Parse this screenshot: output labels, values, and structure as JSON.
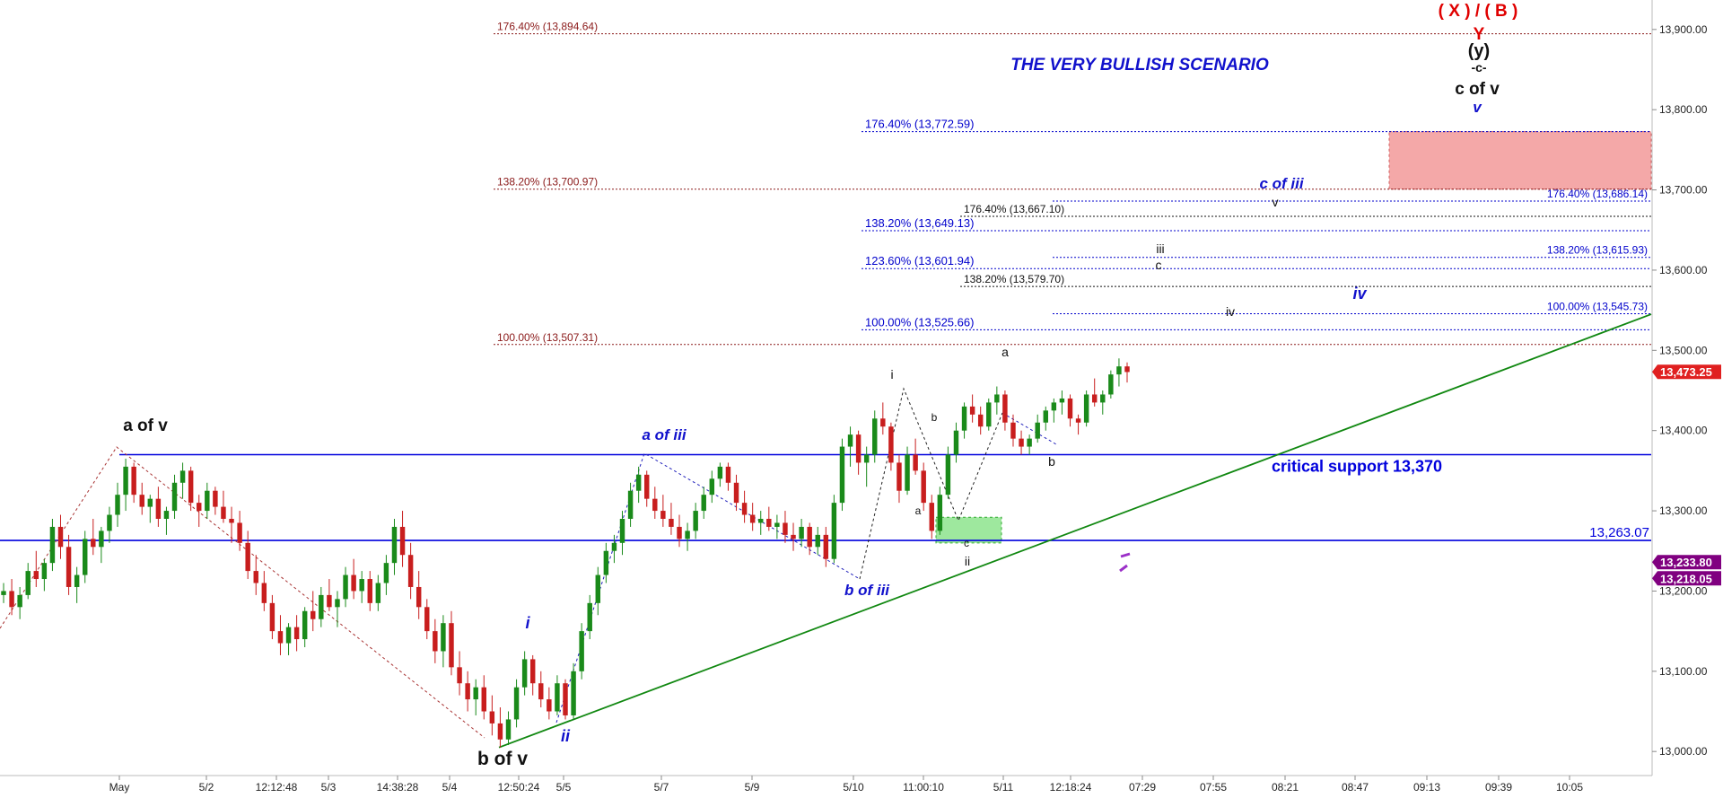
{
  "chart_data": {
    "type": "candlestick",
    "title": "THE VERY BULLISH SCENARIO",
    "ylim": [
      12970,
      13930
    ],
    "y_ticks": [
      {
        "value": 13000,
        "label": "13,000.00"
      },
      {
        "value": 13100,
        "label": "13,100.00"
      },
      {
        "value": 13200,
        "label": "13,200.00"
      },
      {
        "value": 13300,
        "label": "13,300.00"
      },
      {
        "value": 13400,
        "label": "13,400.00"
      },
      {
        "value": 13500,
        "label": "13,500.00"
      },
      {
        "value": 13600,
        "label": "13,600.00"
      },
      {
        "value": 13700,
        "label": "13,700.00"
      },
      {
        "value": 13800,
        "label": "13,800.00"
      },
      {
        "value": 13900,
        "label": "13,900.00"
      }
    ],
    "x_ticks": [
      "May",
      "5/2",
      "12:12:48",
      "5/3",
      "14:38:28",
      "5/4",
      "12:50:24",
      "5/5",
      "5/7",
      "5/9",
      "5/10",
      "11:00:10",
      "5/11",
      "12:18:24",
      "07:29",
      "07:55",
      "08:21",
      "08:47",
      "09:13",
      "09:39",
      "10:05"
    ],
    "price_badges": [
      {
        "value": 13473.25,
        "label": "13,473.25",
        "color": "#e02020"
      },
      {
        "value": 13233.8,
        "label": "13,233.80",
        "color": "#800080"
      },
      {
        "value": 13218.05,
        "label": "13,218.05",
        "color": "#800080"
      }
    ],
    "horizontal_lines": [
      {
        "value": 13370,
        "label": "critical support 13,370",
        "color": "#0000dd"
      },
      {
        "value": 13263.07,
        "label": "13,263.07",
        "color": "#0000dd"
      }
    ],
    "fib_levels": [
      {
        "label": "176.40% (13,894.64)",
        "value": 13894.64,
        "color": "#8b1a1a"
      },
      {
        "label": "138.20% (13,700.97)",
        "value": 13700.97,
        "color": "#8b1a1a"
      },
      {
        "label": "100.00% (13,507.31)",
        "value": 13507.31,
        "color": "#8b1a1a"
      },
      {
        "label": "176.40% (13,772.59)",
        "value": 13772.59,
        "color": "#0000cc"
      },
      {
        "label": "138.20% (13,649.13)",
        "value": 13649.13,
        "color": "#0000cc"
      },
      {
        "label": "123.60% (13,601.94)",
        "value": 13601.94,
        "color": "#0000cc"
      },
      {
        "label": "100.00% (13,525.66)",
        "value": 13525.66,
        "color": "#0000cc"
      },
      {
        "label": "176.40% (13,667.10)",
        "value": 13667.1,
        "color": "#111111"
      },
      {
        "label": "138.20% (13,579.70)",
        "value": 13579.7,
        "color": "#111111"
      },
      {
        "label": "176.40% (13,686.14)",
        "value": 13686.14,
        "color": "#0000cc"
      },
      {
        "label": "138.20% (13,615.93)",
        "value": 13615.93,
        "color": "#0000cc"
      },
      {
        "label": "100.00% (13,545.73)",
        "value": 13545.73,
        "color": "#0000cc"
      }
    ],
    "trendline": {
      "from_price": 13005,
      "to_price": 13545,
      "color": "#118811"
    },
    "target_zone": {
      "low": 13700.97,
      "high": 13772.59,
      "color": "#f4a8a8"
    },
    "support_zone": {
      "low": 13260,
      "high": 13292,
      "color": "#9ee89e"
    },
    "wave_labels": [
      "( X ) / ( B )",
      "Y",
      "(y)",
      "-c-",
      "c of v",
      "v",
      "a of v",
      "b of v",
      "a of iii",
      "b of iii",
      "c of iii",
      "i",
      "ii",
      "iv",
      "i",
      "ii",
      "a",
      "b",
      "c",
      "a",
      "b",
      "c",
      "iii",
      "iv",
      "v"
    ],
    "ohlc": [
      [
        13195,
        13210,
        13185,
        13200
      ],
      [
        13200,
        13215,
        13170,
        13180
      ],
      [
        13180,
        13205,
        13165,
        13195
      ],
      [
        13195,
        13235,
        13190,
        13225
      ],
      [
        13225,
        13250,
        13205,
        13215
      ],
      [
        13215,
        13240,
        13200,
        13235
      ],
      [
        13235,
        13290,
        13225,
        13280
      ],
      [
        13280,
        13295,
        13240,
        13255
      ],
      [
        13255,
        13270,
        13195,
        13205
      ],
      [
        13205,
        13230,
        13185,
        13220
      ],
      [
        13220,
        13275,
        13210,
        13265
      ],
      [
        13265,
        13290,
        13245,
        13255
      ],
      [
        13255,
        13280,
        13235,
        13275
      ],
      [
        13275,
        13305,
        13260,
        13295
      ],
      [
        13295,
        13335,
        13280,
        13320
      ],
      [
        13320,
        13365,
        13300,
        13355
      ],
      [
        13355,
        13360,
        13310,
        13320
      ],
      [
        13320,
        13335,
        13295,
        13305
      ],
      [
        13305,
        13320,
        13285,
        13315
      ],
      [
        13315,
        13330,
        13280,
        13290
      ],
      [
        13290,
        13305,
        13270,
        13300
      ],
      [
        13300,
        13345,
        13290,
        13335
      ],
      [
        13335,
        13360,
        13315,
        13350
      ],
      [
        13350,
        13355,
        13300,
        13310
      ],
      [
        13310,
        13320,
        13280,
        13300
      ],
      [
        13300,
        13335,
        13290,
        13325
      ],
      [
        13325,
        13330,
        13295,
        13305
      ],
      [
        13305,
        13325,
        13285,
        13290
      ],
      [
        13290,
        13305,
        13260,
        13285
      ],
      [
        13285,
        13300,
        13250,
        13260
      ],
      [
        13260,
        13275,
        13215,
        13225
      ],
      [
        13225,
        13245,
        13195,
        13210
      ],
      [
        13210,
        13225,
        13175,
        13185
      ],
      [
        13185,
        13195,
        13140,
        13150
      ],
      [
        13150,
        13170,
        13120,
        13135
      ],
      [
        13135,
        13160,
        13120,
        13155
      ],
      [
        13155,
        13170,
        13125,
        13140
      ],
      [
        13140,
        13180,
        13130,
        13175
      ],
      [
        13175,
        13200,
        13150,
        13165
      ],
      [
        13165,
        13205,
        13155,
        13195
      ],
      [
        13195,
        13215,
        13175,
        13180
      ],
      [
        13180,
        13200,
        13155,
        13190
      ],
      [
        13190,
        13230,
        13180,
        13220
      ],
      [
        13220,
        13240,
        13190,
        13200
      ],
      [
        13200,
        13225,
        13185,
        13215
      ],
      [
        13215,
        13225,
        13175,
        13185
      ],
      [
        13185,
        13220,
        13175,
        13210
      ],
      [
        13210,
        13245,
        13195,
        13235
      ],
      [
        13235,
        13290,
        13220,
        13280
      ],
      [
        13280,
        13300,
        13230,
        13245
      ],
      [
        13245,
        13260,
        13190,
        13205
      ],
      [
        13205,
        13225,
        13165,
        13180
      ],
      [
        13180,
        13190,
        13140,
        13150
      ],
      [
        13150,
        13165,
        13110,
        13125
      ],
      [
        13125,
        13170,
        13105,
        13160
      ],
      [
        13160,
        13175,
        13095,
        13105
      ],
      [
        13105,
        13125,
        13070,
        13085
      ],
      [
        13085,
        13100,
        13050,
        13065
      ],
      [
        13065,
        13090,
        13045,
        13080
      ],
      [
        13080,
        13095,
        13040,
        13050
      ],
      [
        13050,
        13070,
        13020,
        13035
      ],
      [
        13035,
        13055,
        13005,
        13015
      ],
      [
        13015,
        13050,
        13008,
        13040
      ],
      [
        13040,
        13090,
        13030,
        13080
      ],
      [
        13080,
        13125,
        13070,
        13115
      ],
      [
        13115,
        13120,
        13070,
        13085
      ],
      [
        13085,
        13100,
        13055,
        13065
      ],
      [
        13065,
        13080,
        13040,
        13050
      ],
      [
        13050,
        13095,
        13045,
        13085
      ],
      [
        13085,
        13090,
        13040,
        13045
      ],
      [
        13045,
        13110,
        13040,
        13100
      ],
      [
        13100,
        13160,
        13090,
        13150
      ],
      [
        13150,
        13195,
        13140,
        13185
      ],
      [
        13185,
        13230,
        13170,
        13220
      ],
      [
        13220,
        13260,
        13210,
        13250
      ],
      [
        13250,
        13270,
        13235,
        13260
      ],
      [
        13260,
        13300,
        13245,
        13290
      ],
      [
        13290,
        13335,
        13280,
        13325
      ],
      [
        13325,
        13355,
        13310,
        13345
      ],
      [
        13345,
        13350,
        13305,
        13315
      ],
      [
        13315,
        13330,
        13290,
        13300
      ],
      [
        13300,
        13320,
        13280,
        13290
      ],
      [
        13290,
        13310,
        13270,
        13280
      ],
      [
        13280,
        13295,
        13255,
        13265
      ],
      [
        13265,
        13285,
        13250,
        13275
      ],
      [
        13275,
        13310,
        13265,
        13300
      ],
      [
        13300,
        13330,
        13290,
        13320
      ],
      [
        13320,
        13350,
        13310,
        13340
      ],
      [
        13340,
        13360,
        13330,
        13355
      ],
      [
        13355,
        13360,
        13325,
        13335
      ],
      [
        13335,
        13345,
        13300,
        13310
      ],
      [
        13310,
        13325,
        13285,
        13295
      ],
      [
        13295,
        13310,
        13275,
        13285
      ],
      [
        13285,
        13300,
        13270,
        13290
      ],
      [
        13290,
        13305,
        13275,
        13280
      ],
      [
        13280,
        13295,
        13265,
        13285
      ],
      [
        13285,
        13300,
        13260,
        13270
      ],
      [
        13270,
        13285,
        13250,
        13265
      ],
      [
        13265,
        13290,
        13255,
        13280
      ],
      [
        13280,
        13285,
        13245,
        13255
      ],
      [
        13255,
        13280,
        13245,
        13270
      ],
      [
        13270,
        13280,
        13230,
        13240
      ],
      [
        13240,
        13320,
        13235,
        13310
      ],
      [
        13310,
        13390,
        13300,
        13380
      ],
      [
        13380,
        13405,
        13355,
        13395
      ],
      [
        13395,
        13400,
        13345,
        13360
      ],
      [
        13360,
        13380,
        13330,
        13370
      ],
      [
        13370,
        13425,
        13360,
        13415
      ],
      [
        13415,
        13435,
        13395,
        13405
      ],
      [
        13405,
        13410,
        13350,
        13360
      ],
      [
        13360,
        13370,
        13310,
        13325
      ],
      [
        13325,
        13380,
        13320,
        13370
      ],
      [
        13370,
        13390,
        13345,
        13350
      ],
      [
        13350,
        13360,
        13300,
        13310
      ],
      [
        13310,
        13320,
        13265,
        13275
      ],
      [
        13275,
        13330,
        13270,
        13320
      ],
      [
        13320,
        13380,
        13315,
        13370
      ],
      [
        13370,
        13410,
        13360,
        13400
      ],
      [
        13400,
        13435,
        13390,
        13430
      ],
      [
        13430,
        13445,
        13410,
        13420
      ],
      [
        13420,
        13430,
        13395,
        13405
      ],
      [
        13405,
        13440,
        13400,
        13435
      ],
      [
        13435,
        13455,
        13420,
        13445
      ],
      [
        13445,
        13450,
        13400,
        13410
      ],
      [
        13410,
        13420,
        13380,
        13390
      ],
      [
        13390,
        13400,
        13370,
        13380
      ],
      [
        13380,
        13395,
        13370,
        13390
      ],
      [
        13390,
        13420,
        13385,
        13410
      ],
      [
        13410,
        13430,
        13400,
        13425
      ],
      [
        13425,
        13440,
        13410,
        13435
      ],
      [
        13435,
        13450,
        13420,
        13440
      ],
      [
        13440,
        13445,
        13405,
        13415
      ],
      [
        13415,
        13420,
        13395,
        13410
      ],
      [
        13410,
        13450,
        13405,
        13445
      ],
      [
        13445,
        13465,
        13430,
        13435
      ],
      [
        13435,
        13450,
        13420,
        13445
      ],
      [
        13445,
        13475,
        13440,
        13470
      ],
      [
        13470,
        13490,
        13455,
        13480
      ],
      [
        13480,
        13485,
        13460,
        13473
      ]
    ]
  }
}
